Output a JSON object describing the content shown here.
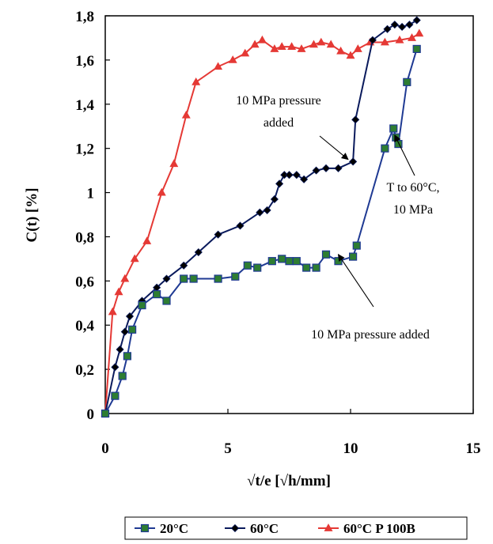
{
  "chart_data": {
    "type": "line",
    "xlabel": "√t/e [√h/mm]",
    "ylabel": "C(t) [%]",
    "xlim": [
      0,
      15
    ],
    "ylim": [
      0,
      1.8
    ],
    "x_ticks": [
      "0",
      "5",
      "10",
      "15"
    ],
    "y_ticks": [
      "0",
      "0,2",
      "0,4",
      "0,6",
      "0,8",
      "1",
      "1,2",
      "1,4",
      "1,6",
      "1,8"
    ],
    "grid": false,
    "legend_position": "bottom",
    "series": [
      {
        "name": "20°C",
        "color": "#1f3a93",
        "marker": "square",
        "marker_fill": "#2e7d32",
        "x": [
          0,
          0.4,
          0.7,
          0.9,
          1.1,
          1.5,
          2.1,
          2.5,
          3.2,
          3.6,
          4.6,
          5.3,
          5.8,
          6.2,
          6.8,
          7.2,
          7.5,
          7.8,
          8.2,
          8.6,
          9.0,
          9.5,
          10.1,
          10.25,
          11.4,
          11.75,
          11.85,
          11.95,
          12.3,
          12.7
        ],
        "y": [
          0,
          0.08,
          0.17,
          0.26,
          0.38,
          0.49,
          0.54,
          0.51,
          0.61,
          0.61,
          0.61,
          0.62,
          0.67,
          0.66,
          0.69,
          0.7,
          0.69,
          0.69,
          0.66,
          0.66,
          0.72,
          0.69,
          0.71,
          0.76,
          1.2,
          1.29,
          1.25,
          1.22,
          1.5,
          1.65
        ]
      },
      {
        "name": "60°C",
        "color": "#0a1a5c",
        "marker": "diamond",
        "marker_fill": "#000000",
        "x": [
          0,
          0.4,
          0.6,
          0.8,
          1.0,
          1.5,
          2.1,
          2.5,
          3.2,
          3.8,
          4.6,
          5.5,
          6.3,
          6.6,
          6.9,
          7.1,
          7.3,
          7.5,
          7.8,
          8.1,
          8.6,
          9.0,
          9.5,
          10.1,
          10.2,
          10.9,
          11.5,
          11.8,
          12.1,
          12.4,
          12.7
        ],
        "y": [
          0,
          0.21,
          0.29,
          0.37,
          0.44,
          0.51,
          0.57,
          0.61,
          0.67,
          0.73,
          0.81,
          0.85,
          0.91,
          0.92,
          0.97,
          1.04,
          1.08,
          1.08,
          1.08,
          1.06,
          1.1,
          1.11,
          1.11,
          1.14,
          1.33,
          1.69,
          1.74,
          1.76,
          1.75,
          1.76,
          1.78
        ]
      },
      {
        "name": "60°C P 100B",
        "color": "#e53935",
        "marker": "triangle",
        "marker_fill": "#e53935",
        "x": [
          0,
          0.3,
          0.55,
          0.8,
          1.2,
          1.7,
          2.3,
          2.8,
          3.3,
          3.7,
          4.6,
          5.2,
          5.7,
          6.1,
          6.4,
          6.9,
          7.2,
          7.6,
          8.0,
          8.5,
          8.8,
          9.2,
          9.6,
          10.0,
          10.3,
          10.8,
          11.4,
          12.0,
          12.5,
          12.8
        ],
        "y": [
          0,
          0.46,
          0.55,
          0.61,
          0.7,
          0.78,
          1.0,
          1.13,
          1.35,
          1.5,
          1.57,
          1.6,
          1.63,
          1.67,
          1.69,
          1.65,
          1.66,
          1.66,
          1.65,
          1.67,
          1.68,
          1.67,
          1.64,
          1.62,
          1.65,
          1.68,
          1.68,
          1.69,
          1.7,
          1.72
        ]
      }
    ],
    "annotations": [
      {
        "lines": [
          "10 MPa pressure",
          "added"
        ],
        "arrow_to": [
          9.9,
          1.15
        ]
      },
      {
        "lines": [
          "T to 60°C,",
          "10 MPa"
        ],
        "arrow_to": [
          11.8,
          1.26
        ]
      },
      {
        "lines": [
          "10 MPa pressure added"
        ],
        "arrow_to": [
          9.5,
          0.72
        ]
      }
    ]
  }
}
